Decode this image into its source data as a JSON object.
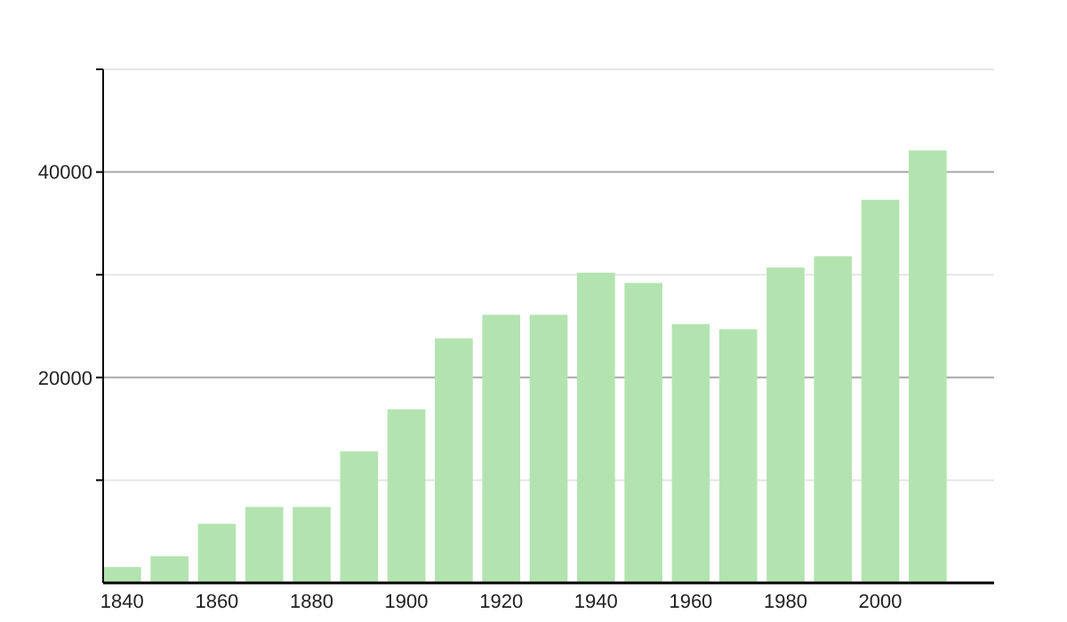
{
  "chart_data": {
    "type": "bar",
    "x": [
      1840,
      1850,
      1860,
      1870,
      1880,
      1890,
      1900,
      1910,
      1920,
      1930,
      1940,
      1950,
      1960,
      1970,
      1980,
      1990,
      2000,
      2010
    ],
    "values": [
      1550,
      2600,
      5750,
      7400,
      7400,
      12800,
      16900,
      23800,
      26100,
      26100,
      30200,
      29200,
      25200,
      24700,
      30700,
      31800,
      37300,
      42100
    ],
    "color": "#b3e4b0",
    "xlim": [
      1836,
      2024
    ],
    "xticks": [
      1840,
      1860,
      1880,
      1900,
      1920,
      1940,
      1960,
      1980,
      2000
    ],
    "ylim": [
      0,
      50000
    ],
    "yticks": [
      {
        "value": 10000,
        "label": null
      },
      20000,
      {
        "value": 30000,
        "label": null
      },
      40000,
      {
        "value": 50000,
        "label": null
      }
    ],
    "grid": "y"
  }
}
